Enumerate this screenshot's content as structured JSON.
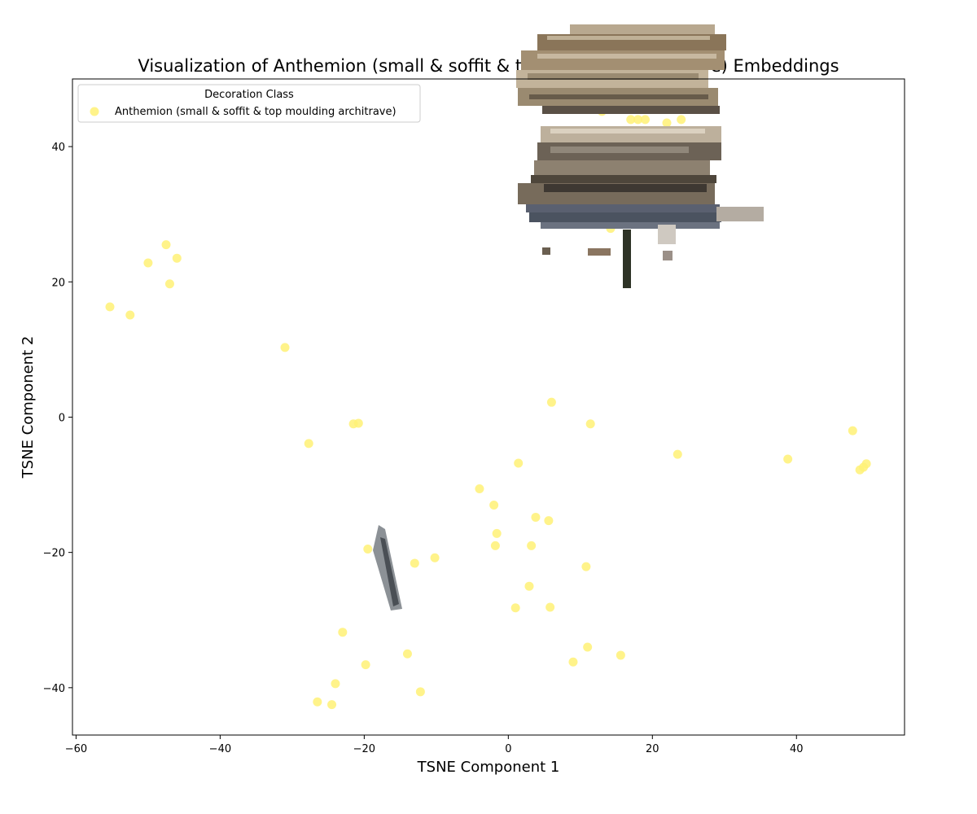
{
  "chart_data": {
    "type": "scatter",
    "title": "Visualization of Anthemion (small & soffit & top moulding architrave) Embeddings",
    "xlabel": "TSNE Component 1",
    "ylabel": "TSNE Component 2",
    "xlim": [
      -60.5,
      55
    ],
    "ylim": [
      -47,
      50
    ],
    "xticks": [
      -60,
      -40,
      -20,
      0,
      20,
      40
    ],
    "yticks": [
      -40,
      -20,
      0,
      20,
      40
    ],
    "grid": false,
    "legend": {
      "title": "Decoration Class",
      "placement": "top-left",
      "entries": [
        "Anthemion (small & soffit & top moulding architrave)"
      ]
    },
    "series": [
      {
        "name": "Anthemion (small & soffit & top moulding architrave)",
        "color": "#fff176",
        "points": [
          {
            "x": -47.5,
            "y": 25.5
          },
          {
            "x": -50,
            "y": 22.8
          },
          {
            "x": -46,
            "y": 23.5
          },
          {
            "x": -47,
            "y": 19.7
          },
          {
            "x": -55.3,
            "y": 16.3
          },
          {
            "x": -52.5,
            "y": 15.1
          },
          {
            "x": -31,
            "y": 10.3
          },
          {
            "x": -21.5,
            "y": -1
          },
          {
            "x": -20.8,
            "y": -0.9
          },
          {
            "x": -27.7,
            "y": -3.9
          },
          {
            "x": 6,
            "y": 2.2
          },
          {
            "x": 11.4,
            "y": -1
          },
          {
            "x": 23.5,
            "y": -5.5
          },
          {
            "x": 38.8,
            "y": -6.2
          },
          {
            "x": 47.8,
            "y": -2
          },
          {
            "x": 48.8,
            "y": -7.8
          },
          {
            "x": 49.3,
            "y": -7.4
          },
          {
            "x": 49.7,
            "y": -6.9
          },
          {
            "x": 1.4,
            "y": -6.8
          },
          {
            "x": -4,
            "y": -10.6
          },
          {
            "x": -2,
            "y": -13
          },
          {
            "x": 3.8,
            "y": -14.8
          },
          {
            "x": 5.6,
            "y": -15.3
          },
          {
            "x": -1.6,
            "y": -17.2
          },
          {
            "x": -1.8,
            "y": -19
          },
          {
            "x": 3.2,
            "y": -19
          },
          {
            "x": -19.5,
            "y": -19.5
          },
          {
            "x": -13,
            "y": -21.6
          },
          {
            "x": -10.2,
            "y": -20.8
          },
          {
            "x": 10.8,
            "y": -22.1
          },
          {
            "x": 2.9,
            "y": -25
          },
          {
            "x": 1,
            "y": -28.2
          },
          {
            "x": 5.8,
            "y": -28.1
          },
          {
            "x": -23,
            "y": -31.8
          },
          {
            "x": -14,
            "y": -35
          },
          {
            "x": 11,
            "y": -34
          },
          {
            "x": 15.6,
            "y": -35.2
          },
          {
            "x": 9,
            "y": -36.2
          },
          {
            "x": -19.8,
            "y": -36.6
          },
          {
            "x": -24,
            "y": -39.4
          },
          {
            "x": -12.2,
            "y": -40.6
          },
          {
            "x": -26.5,
            "y": -42.1
          },
          {
            "x": -24.5,
            "y": -42.5
          },
          {
            "x": 14.2,
            "y": 27.9
          },
          {
            "x": 13,
            "y": 45.2
          },
          {
            "x": 17,
            "y": 44
          },
          {
            "x": 18,
            "y": 44
          },
          {
            "x": 19,
            "y": 44
          },
          {
            "x": 22,
            "y": 43.5
          },
          {
            "x": 24,
            "y": 44
          }
        ]
      }
    ]
  }
}
